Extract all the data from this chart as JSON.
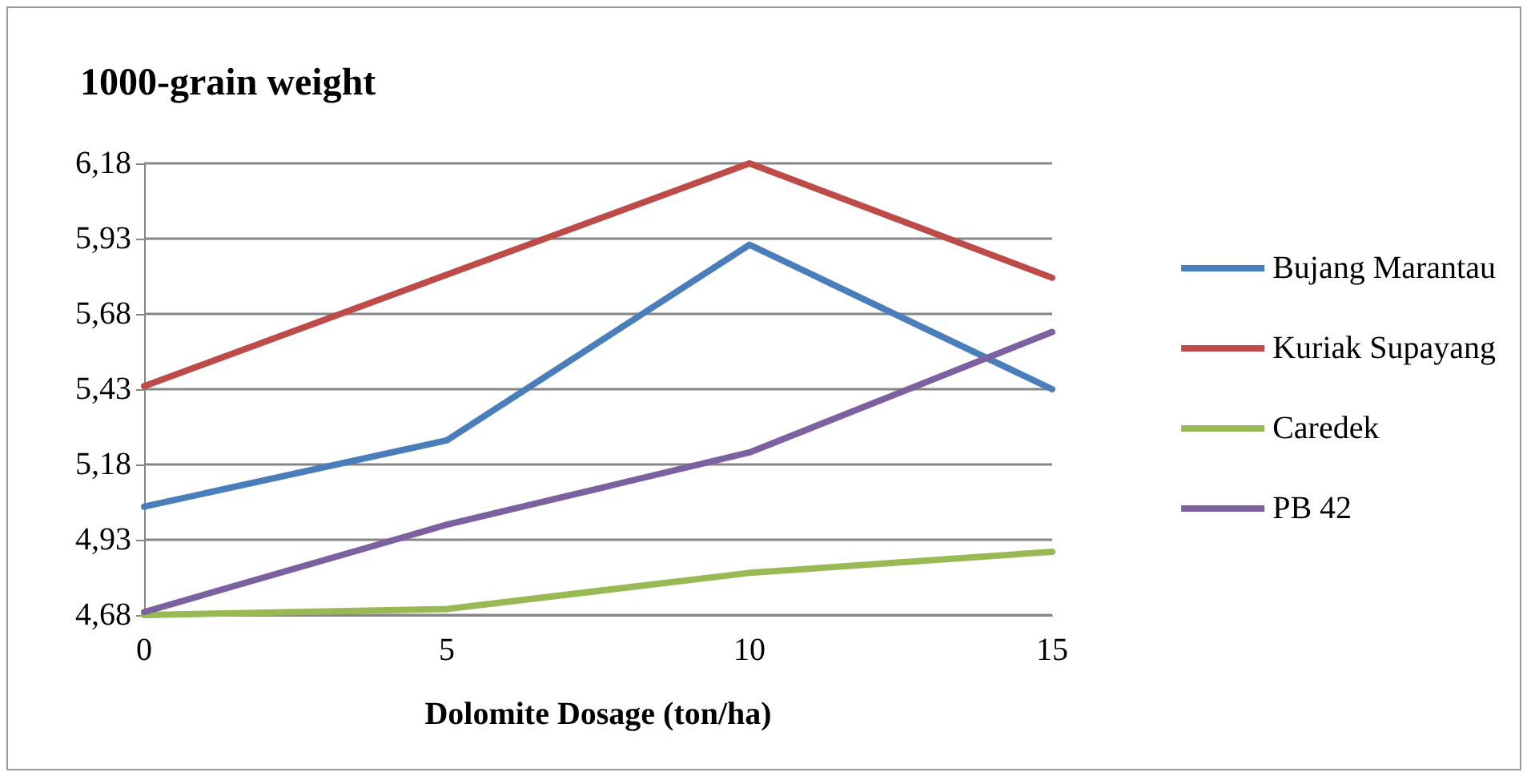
{
  "chart_data": {
    "type": "line",
    "title": "1000-grain weight",
    "xlabel": "Dolomite Dosage (ton/ha)",
    "categories": [
      "0",
      "5",
      "10",
      "15"
    ],
    "series": [
      {
        "name": "Bujang Marantau",
        "color": "#4a7ebb",
        "values": [
          5.04,
          5.26,
          5.91,
          5.43
        ]
      },
      {
        "name": "Kuriak Supayang",
        "color": "#be4b48",
        "values": [
          5.44,
          5.81,
          6.18,
          5.8
        ]
      },
      {
        "name": "Caredek",
        "color": "#98b954",
        "values": [
          4.68,
          4.7,
          4.82,
          4.89
        ]
      },
      {
        "name": "PB 42",
        "color": "#7d60a0",
        "values": [
          4.69,
          4.98,
          5.22,
          5.62
        ]
      }
    ],
    "ylim": [
      4.68,
      6.18
    ],
    "yticks": [
      {
        "value": 4.68,
        "label": "4,68"
      },
      {
        "value": 4.93,
        "label": "4,93"
      },
      {
        "value": 5.18,
        "label": "5,18"
      },
      {
        "value": 5.43,
        "label": "5,43"
      },
      {
        "value": 5.68,
        "label": "5,68"
      },
      {
        "value": 5.93,
        "label": "5,93"
      },
      {
        "value": 6.18,
        "label": "6,18"
      }
    ],
    "grid": "y",
    "legend": "right",
    "marker": "none",
    "line_style": "solid"
  }
}
